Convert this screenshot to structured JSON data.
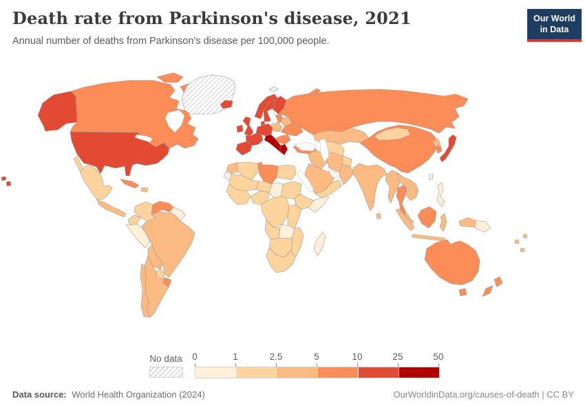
{
  "header": {
    "title": "Death rate from Parkinson's disease, 2021",
    "subtitle": "Annual number of deaths from Parkinson's disease per 100,000 people."
  },
  "logo": {
    "line1": "Our World",
    "line2": "in Data",
    "bg_color": "#1d3d63",
    "stripe_color": "#dc352c"
  },
  "legend": {
    "no_data_label": "No data",
    "ticks": [
      "0",
      "1",
      "2.5",
      "5",
      "10",
      "25",
      "50"
    ],
    "no_data_pattern": "diagonal-hatch"
  },
  "footer": {
    "source_label": "Data source:",
    "source_value": "World Health Organization (2024)",
    "right_text": "OurWorldinData.org/causes-of-death | CC BY"
  },
  "chart_data": {
    "type": "choropleth",
    "title": "Death rate from Parkinson's disease, 2021",
    "unit": "deaths per 100,000 people",
    "year": 2021,
    "legend_position": "bottom",
    "bin_labels": [
      "0-1",
      "1-2.5",
      "2.5-5",
      "5-10",
      "10-25",
      "25-50"
    ],
    "bin_colors": [
      "#fef0d9",
      "#fdd49e",
      "#fdbb84",
      "#fc8d59",
      "#e34a33",
      "#b30000"
    ],
    "no_data_color": "hatch",
    "regions": {
      "united-states": 4,
      "canada": 3,
      "greenland": "no-data",
      "mexico": 1,
      "central-america": 2,
      "cuba": 3,
      "hispaniola": 2,
      "colombia": 1,
      "venezuela": 3,
      "guyanas": 0,
      "ecuador": 1,
      "peru": 0,
      "brazil": 2,
      "bolivia": 2,
      "paraguay": 1,
      "uruguay": 3,
      "argentina": 2,
      "chile": 2,
      "iceland": 4,
      "ireland": 4,
      "united-kingdom": 4,
      "norway": 4,
      "sweden": 4,
      "finland": 4,
      "denmark": 4,
      "baltics": 3,
      "poland": 2,
      "belarus": 2,
      "ukraine": 3,
      "germany": 4,
      "france": 4,
      "iberia": 4,
      "italy": 5,
      "balkans": 3,
      "greece": 5,
      "russia": 3,
      "svalbard": "no-data",
      "turkey": 3,
      "syria-iraq": 2,
      "saudi-arabia": 2,
      "yemen-oman": 1,
      "iran": 2,
      "kazakhstan": 2,
      "central-asia": 1,
      "afghanistan": 1,
      "pakistan": 2,
      "china": 3,
      "mongolia": 1,
      "north-korea": 2,
      "south-korea": 3,
      "japan": 4,
      "india": 2,
      "sri-lanka": 2,
      "myanmar": 2,
      "thailand": 3,
      "indochina": 2,
      "malaysia": 2,
      "indonesia": 2,
      "borneo": 3,
      "philippines": 0,
      "papua-new-guinea": 0,
      "taiwan": "no-data",
      "australia": 3,
      "new-zealand": 3,
      "pacific-islands": 2,
      "morocco": 2,
      "algeria": 1,
      "tunisia": 3,
      "libya": 3,
      "egypt": 1,
      "western-sahara": "no-data",
      "sahel": 1,
      "niger": 1,
      "chad": 0,
      "sudan": 1,
      "west-africa": 1,
      "nigeria": 1,
      "ethiopia": 1,
      "somalia": 0,
      "drc": 1,
      "east-africa": 1,
      "angola": 1,
      "zambia": 0,
      "mozambique": 1,
      "namibia-botswana": 1,
      "south-africa": 1,
      "madagascar": 0
    }
  }
}
